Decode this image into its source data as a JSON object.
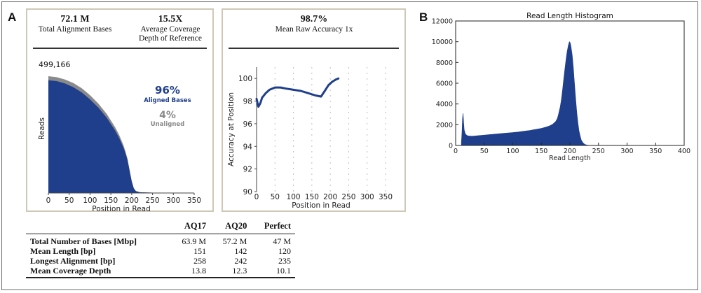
{
  "panels": {
    "a": "A",
    "b": "B"
  },
  "summary": [
    {
      "value": "72.1 M",
      "label": "Total Alignment Bases"
    },
    {
      "value": "15.5X",
      "label": "Average Coverage Depth of Reference"
    },
    {
      "value": "98.7%",
      "label": "Mean Raw Accuracy 1x"
    }
  ],
  "colors": {
    "aligned": "#1f3f8c",
    "unaligned": "#8a8a8a",
    "box_border": "#cfc8b8"
  },
  "chart_data": [
    {
      "type": "area",
      "id": "reads-by-position",
      "xlabel": "Position in Read",
      "ylabel": "Reads",
      "xlim": [
        0,
        350
      ],
      "xticks": [
        0,
        50,
        100,
        150,
        200,
        250,
        300,
        350
      ],
      "ylim": [
        0,
        520000
      ],
      "peak_label": "499,166",
      "aligned_pct": "96%",
      "aligned_label": "Aligned Bases",
      "unaligned_pct": "4%",
      "unaligned_label": "Unaligned",
      "series": [
        {
          "name": "Aligned Bases",
          "x": [
            0,
            20,
            40,
            60,
            80,
            100,
            120,
            140,
            160,
            170,
            180,
            185,
            190,
            195,
            200,
            205,
            210,
            220,
            250,
            290
          ],
          "y": [
            482000,
            478000,
            468000,
            452000,
            430000,
            400000,
            365000,
            322000,
            268000,
            235000,
            195000,
            170000,
            140000,
            95000,
            50000,
            20000,
            8000,
            3000,
            1500,
            500
          ]
        },
        {
          "name": "Unaligned",
          "x": [
            0,
            20,
            40,
            60,
            80,
            100,
            120,
            140,
            160,
            170,
            180,
            185,
            190,
            195,
            200,
            205,
            210,
            220,
            250,
            290
          ],
          "y": [
            499166,
            495000,
            485000,
            470000,
            448000,
            418000,
            382000,
            338000,
            282000,
            248000,
            205000,
            178000,
            146000,
            98000,
            52000,
            21000,
            8500,
            3200,
            1600,
            600
          ]
        }
      ]
    },
    {
      "type": "line",
      "id": "accuracy-by-position",
      "xlabel": "Position in Read",
      "ylabel": "Accuracy at Position",
      "xlim": [
        0,
        350
      ],
      "xticks": [
        0,
        50,
        100,
        150,
        200,
        250,
        300,
        350
      ],
      "ylim": [
        90,
        101
      ],
      "yticks": [
        90,
        92,
        94,
        96,
        98,
        100
      ],
      "x": [
        0,
        5,
        10,
        15,
        25,
        35,
        50,
        65,
        80,
        100,
        120,
        140,
        160,
        175,
        185,
        195,
        205,
        215,
        222
      ],
      "y": [
        98.2,
        97.5,
        97.8,
        98.3,
        98.7,
        99.0,
        99.2,
        99.2,
        99.1,
        99.0,
        98.9,
        98.7,
        98.5,
        98.4,
        98.9,
        99.4,
        99.7,
        99.9,
        100.0
      ]
    },
    {
      "type": "bar",
      "id": "read-length-histogram",
      "title": "Read Length Histogram",
      "xlabel": "Read Length",
      "xlim": [
        0,
        400
      ],
      "xticks": [
        0,
        50,
        100,
        150,
        200,
        250,
        300,
        350,
        400
      ],
      "ylim": [
        0,
        12000
      ],
      "yticks": [
        0,
        2000,
        4000,
        6000,
        8000,
        10000,
        12000
      ],
      "x": [
        10,
        11,
        12,
        13,
        14,
        15,
        17,
        20,
        25,
        30,
        40,
        50,
        60,
        70,
        80,
        90,
        100,
        110,
        120,
        130,
        140,
        150,
        160,
        165,
        170,
        175,
        178,
        180,
        183,
        185,
        187,
        189,
        191,
        193,
        195,
        197,
        198,
        199,
        200,
        201,
        202,
        204,
        206,
        208,
        210,
        212,
        214,
        216,
        218,
        220,
        223,
        226,
        230,
        235
      ],
      "y": [
        200,
        1200,
        2600,
        3100,
        2200,
        1500,
        1100,
        950,
        900,
        900,
        950,
        1000,
        1050,
        1100,
        1150,
        1200,
        1250,
        1300,
        1380,
        1450,
        1550,
        1650,
        1800,
        1900,
        2050,
        2300,
        2600,
        3000,
        3700,
        4400,
        5300,
        6300,
        7300,
        8200,
        9000,
        9600,
        9800,
        10000,
        9950,
        9800,
        9500,
        8700,
        7500,
        6000,
        4500,
        3200,
        2200,
        1400,
        900,
        500,
        250,
        100,
        40,
        0
      ]
    }
  ],
  "table": {
    "headers": [
      "",
      "AQ17",
      "AQ20",
      "Perfect"
    ],
    "rows": [
      [
        "Total Number of Bases [Mbp]",
        "63.9 M",
        "57.2 M",
        "47 M"
      ],
      [
        "Mean Length [bp]",
        "151",
        "142",
        "120"
      ],
      [
        "Longest Alignment [bp]",
        "258",
        "242",
        "235"
      ],
      [
        "Mean Coverage Depth",
        "13.8",
        "12.3",
        "10.1"
      ]
    ]
  }
}
